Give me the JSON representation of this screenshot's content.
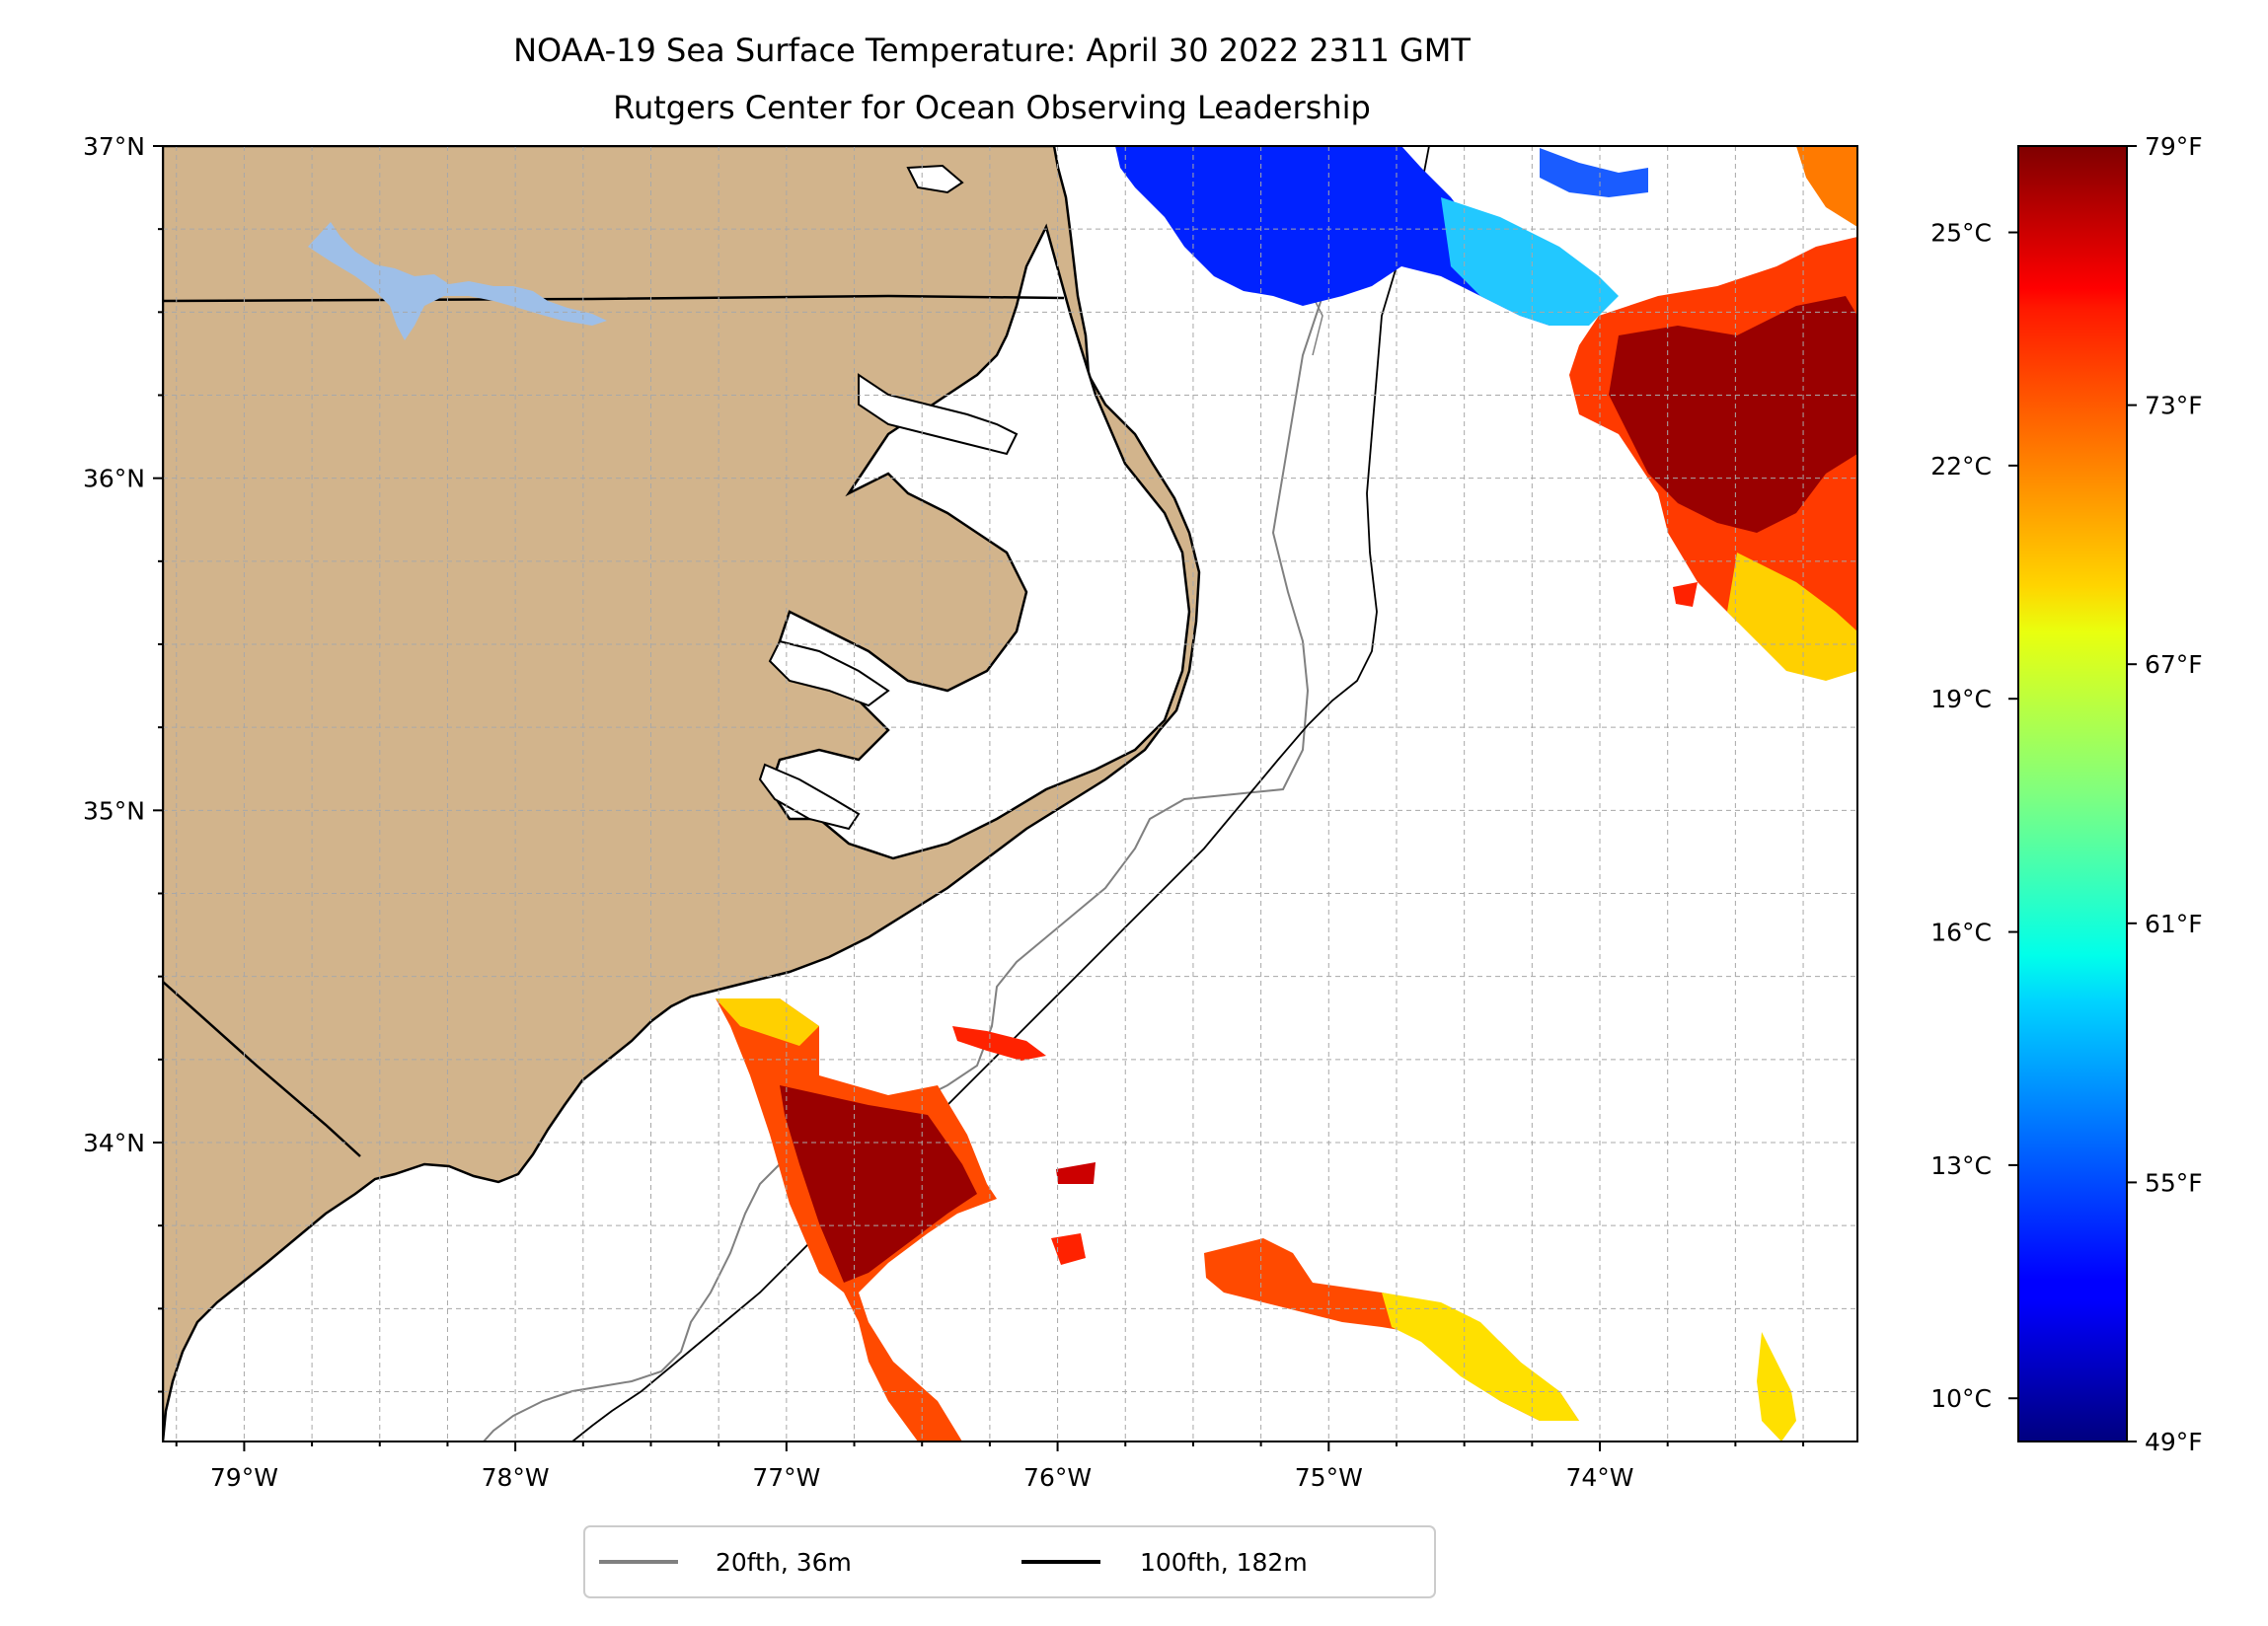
{
  "figure": {
    "title_line1": "NOAA-19 Sea Surface Temperature: April 30 2022 2311 GMT",
    "title_line2": "Rutgers Center for Ocean Observing Leadership"
  },
  "map": {
    "lon_range": [
      -79.3,
      -73.05
    ],
    "lat_range": [
      33.1,
      37.0
    ],
    "lon_ticks": [
      {
        "value": -79,
        "label": "79°W"
      },
      {
        "value": -78,
        "label": "78°W"
      },
      {
        "value": -77,
        "label": "77°W"
      },
      {
        "value": -76,
        "label": "76°W"
      },
      {
        "value": -75,
        "label": "75°W"
      },
      {
        "value": -74,
        "label": "74°W"
      }
    ],
    "lat_ticks": [
      {
        "value": 37,
        "label": "37°N"
      },
      {
        "value": 36,
        "label": "36°N"
      },
      {
        "value": 35,
        "label": "35°N"
      },
      {
        "value": 34,
        "label": "34°N"
      }
    ],
    "grid_step_deg": 0.25,
    "land_color": "#d2b48c",
    "lake_color": "#9ebfe8",
    "isobath_20fth_color": "#808080",
    "isobath_100fth_color": "#000000"
  },
  "legend": {
    "placement": "below-map-center",
    "entries": [
      {
        "label": "20fth, 36m",
        "color": "#808080"
      },
      {
        "label": "100fth, 182m",
        "color": "#000000"
      }
    ]
  },
  "colorbar": {
    "colormap": "jet",
    "range_f": [
      49,
      79
    ],
    "fahrenheit_ticks": [
      {
        "value": 79,
        "label": "79°F"
      },
      {
        "value": 73,
        "label": "73°F"
      },
      {
        "value": 67,
        "label": "67°F"
      },
      {
        "value": 61,
        "label": "61°F"
      },
      {
        "value": 55,
        "label": "55°F"
      },
      {
        "value": 49,
        "label": "49°F"
      }
    ],
    "celsius_ticks": [
      {
        "value": 25,
        "label": "25°C"
      },
      {
        "value": 22,
        "label": "22°C"
      },
      {
        "value": 19,
        "label": "19°C"
      },
      {
        "value": 16,
        "label": "16°C"
      },
      {
        "value": 13,
        "label": "13°C"
      },
      {
        "value": 10,
        "label": "10°C"
      }
    ]
  }
}
